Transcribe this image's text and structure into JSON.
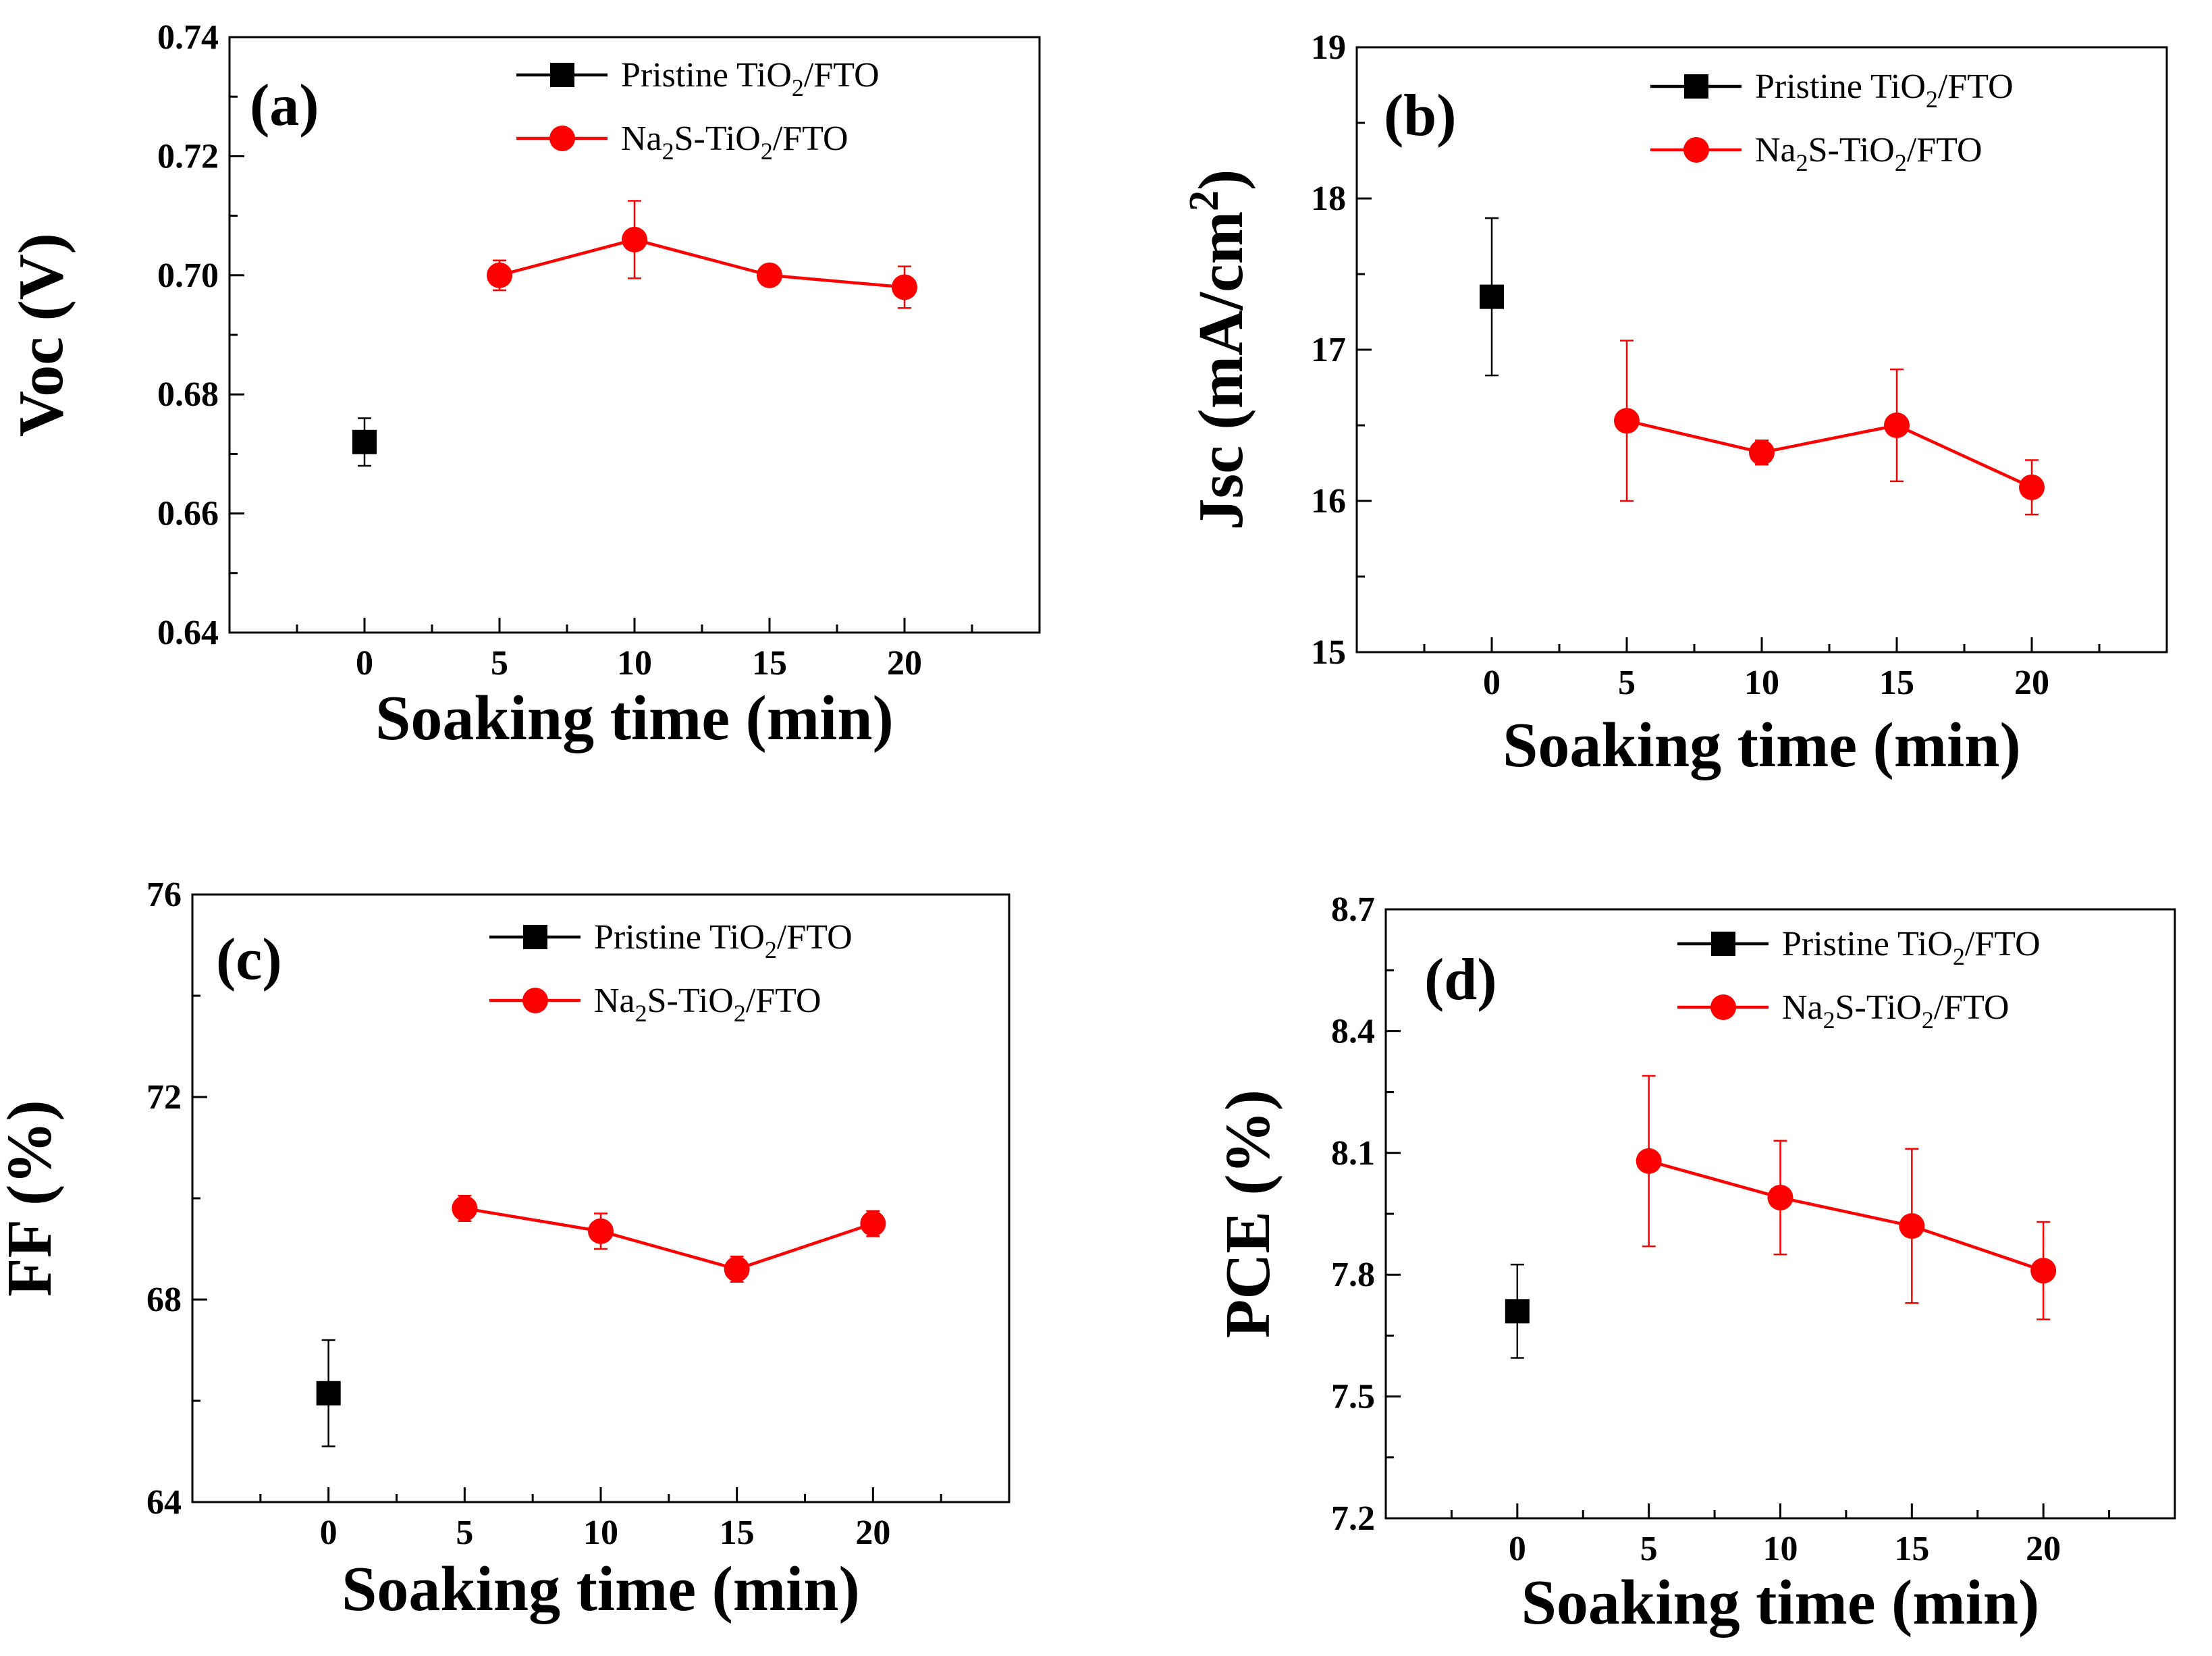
{
  "colors": {
    "pristine": "#000000",
    "na2s": "#ff0000"
  },
  "legend": {
    "pristine": {
      "main": "Pristine TiO",
      "sub": "2",
      "tail": "/FTO"
    },
    "na2s": {
      "pre": "Na",
      "sub1": "2",
      "mid": "S-TiO",
      "sub2": "2",
      "tail": "/FTO"
    }
  },
  "chart_data": [
    {
      "panel": "(a)",
      "type": "line",
      "title": "",
      "xlabel": "Soaking time (min)",
      "ylabel": "Voc (V)",
      "xlim": [
        -5,
        25
      ],
      "xticks": [
        0,
        5,
        10,
        15,
        20
      ],
      "ylim": [
        0.64,
        0.74
      ],
      "yticks": [
        "0.64",
        "0.66",
        "0.68",
        "0.70",
        "0.72",
        "0.74"
      ],
      "legend_position": "top-right",
      "series": [
        {
          "name": "Pristine TiO2/FTO",
          "marker": "square",
          "x": [
            0
          ],
          "values": [
            0.672
          ],
          "err": [
            0.004
          ]
        },
        {
          "name": "Na2S-TiO2/FTO",
          "marker": "circle",
          "x": [
            5,
            10,
            15,
            20
          ],
          "values": [
            0.7,
            0.706,
            0.7,
            0.698
          ],
          "err": [
            0.0025,
            0.0065,
            0.001,
            0.0035
          ]
        }
      ]
    },
    {
      "panel": "(b)",
      "type": "line",
      "title": "",
      "xlabel": "Soaking time (min)",
      "ylabel": "Jsc (mA/cm",
      "ylabel_sup": "2",
      "ylabel_tail": ")",
      "xlim": [
        -5,
        25
      ],
      "xticks": [
        0,
        5,
        10,
        15,
        20
      ],
      "ylim": [
        15,
        19
      ],
      "yticks": [
        "15",
        "16",
        "17",
        "18",
        "19"
      ],
      "legend_position": "top-right",
      "series": [
        {
          "name": "Pristine TiO2/FTO",
          "marker": "square",
          "x": [
            0
          ],
          "values": [
            17.35
          ],
          "err": [
            0.52
          ]
        },
        {
          "name": "Na2S-TiO2/FTO",
          "marker": "circle",
          "x": [
            5,
            10,
            15,
            20
          ],
          "values": [
            16.53,
            16.32,
            16.5,
            16.09
          ],
          "err": [
            0.53,
            0.08,
            0.37,
            0.18
          ]
        }
      ]
    },
    {
      "panel": "(c)",
      "type": "line",
      "title": "",
      "xlabel": "Soaking time (min)",
      "ylabel": "FF (%)",
      "xlim": [
        -5,
        25
      ],
      "xticks": [
        0,
        5,
        10,
        15,
        20
      ],
      "ylim": [
        64,
        76
      ],
      "yticks": [
        "64",
        "68",
        "72",
        "76"
      ],
      "legend_position": "top-right",
      "series": [
        {
          "name": "Pristine TiO2/FTO",
          "marker": "square",
          "x": [
            0
          ],
          "values": [
            66.15
          ],
          "err": [
            1.05
          ]
        },
        {
          "name": "Na2S-TiO2/FTO",
          "marker": "circle",
          "x": [
            5,
            10,
            15,
            20
          ],
          "values": [
            69.8,
            69.35,
            68.6,
            69.5
          ],
          "err": [
            0.25,
            0.35,
            0.25,
            0.25
          ]
        }
      ]
    },
    {
      "panel": "(d)",
      "type": "line",
      "title": "",
      "xlabel": "Soaking time (min)",
      "ylabel": "PCE (%)",
      "xlim": [
        -5,
        25
      ],
      "xticks": [
        0,
        5,
        10,
        15,
        20
      ],
      "ylim": [
        7.2,
        8.7
      ],
      "yticks": [
        "7.2",
        "7.5",
        "7.8",
        "8.1",
        "8.4",
        "8.7"
      ],
      "legend_position": "top-right",
      "series": [
        {
          "name": "Pristine TiO2/FTO",
          "marker": "square",
          "x": [
            0
          ],
          "values": [
            7.71
          ],
          "err": [
            0.115
          ]
        },
        {
          "name": "Na2S-TiO2/FTO",
          "marker": "circle",
          "x": [
            5,
            10,
            15,
            20
          ],
          "values": [
            8.08,
            7.99,
            7.92,
            7.81
          ],
          "err": [
            0.21,
            0.14,
            0.19,
            0.12
          ]
        }
      ]
    }
  ]
}
